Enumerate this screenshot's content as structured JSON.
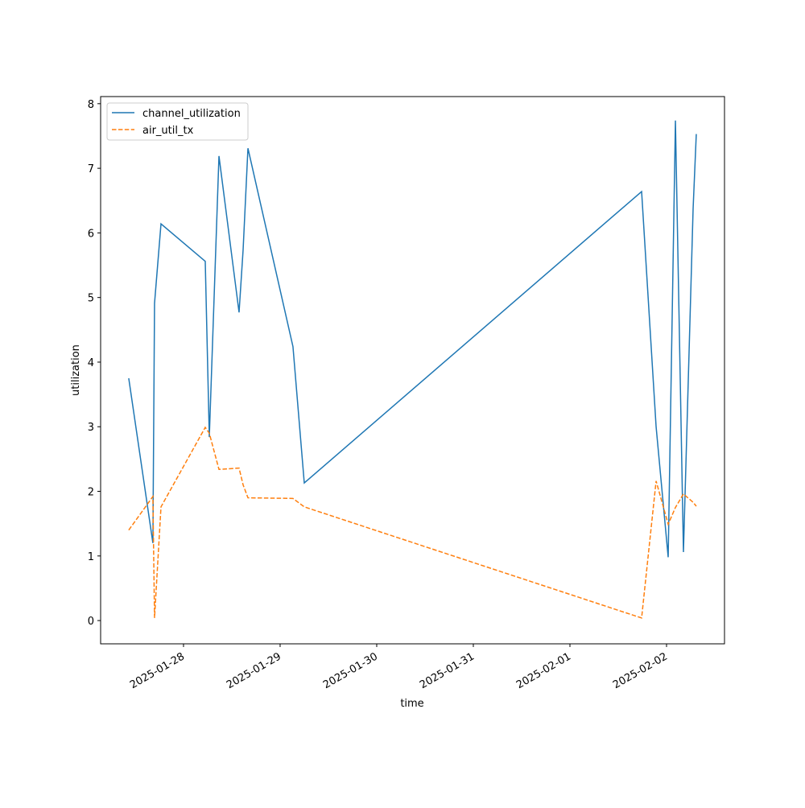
{
  "chart_data": {
    "type": "line",
    "x_label": "time",
    "y_label": "utilization",
    "x": [
      -0.567,
      -0.317,
      -0.3,
      -0.233,
      0.225,
      0.267,
      0.367,
      0.575,
      0.617,
      0.667,
      1.133,
      1.25,
      4.742,
      4.892,
      5.017,
      5.092,
      5.175,
      5.275,
      5.308
    ],
    "series": [
      {
        "name": "channel_utilization",
        "color": "#1f77b4",
        "dash": false,
        "values": [
          3.75,
          1.2,
          4.91,
          6.14,
          5.56,
          2.84,
          7.19,
          4.77,
          5.74,
          7.31,
          4.24,
          2.13,
          6.64,
          3.0,
          0.98,
          7.74,
          1.06,
          6.37,
          7.53
        ]
      },
      {
        "name": "air_util_tx",
        "color": "#ff7f0e",
        "dash": true,
        "values": [
          1.4,
          1.92,
          0.04,
          1.76,
          2.99,
          2.9,
          2.34,
          2.36,
          2.1,
          1.9,
          1.89,
          1.76,
          0.04,
          2.16,
          1.49,
          1.75,
          1.96,
          1.83,
          1.77
        ]
      }
    ],
    "xlim": [
      -0.858,
      5.6
    ],
    "xticks": [
      {
        "value": 0,
        "label": "2025-01-28"
      },
      {
        "value": 1,
        "label": "2025-01-29"
      },
      {
        "value": 2,
        "label": "2025-01-30"
      },
      {
        "value": 3,
        "label": "2025-01-31"
      },
      {
        "value": 4,
        "label": "2025-02-01"
      },
      {
        "value": 5,
        "label": "2025-02-02"
      }
    ],
    "ylim": [
      -0.36,
      8.11
    ],
    "yticks": [
      0,
      1,
      2,
      3,
      4,
      5,
      6,
      7,
      8
    ],
    "legend": "upper left",
    "grid": false
  }
}
